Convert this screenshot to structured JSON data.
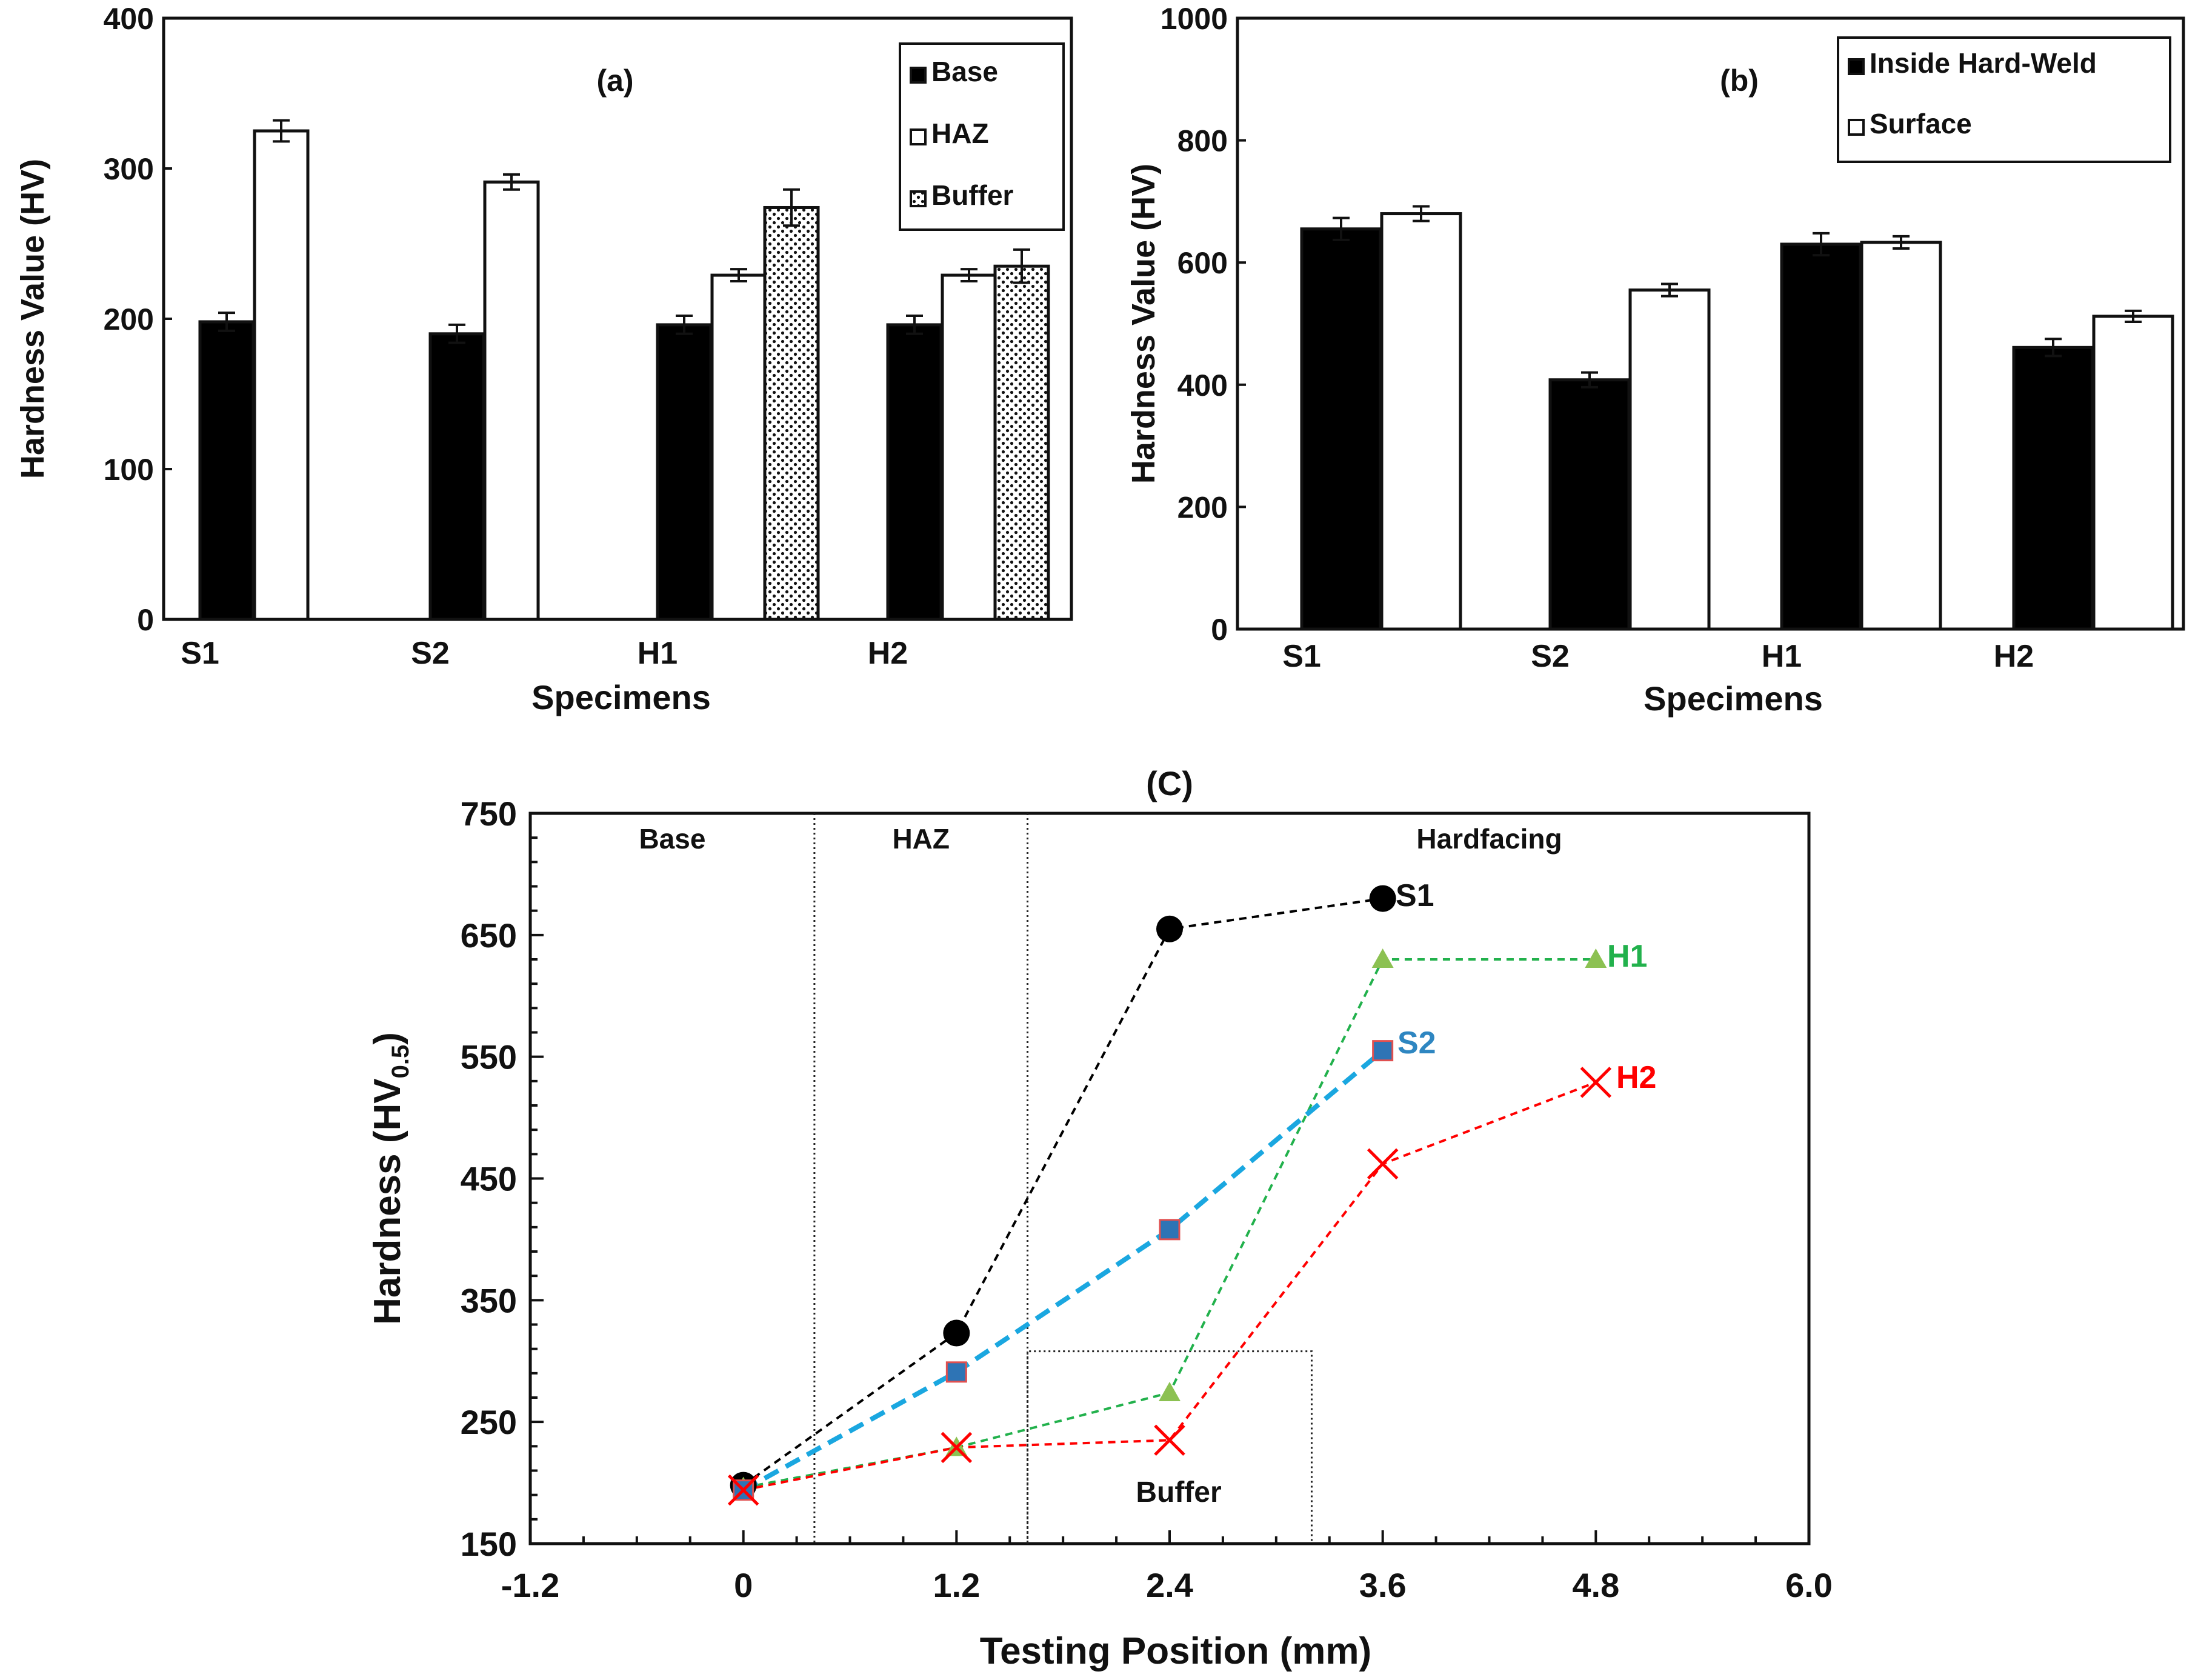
{
  "figure": {
    "colors": {
      "axis": "#111111",
      "s1": "#000000",
      "h1_line": "#22b14c",
      "h1_marker": "#8cc152",
      "s2_line": "#1aa7e0",
      "s2_fill": "#2e74b5",
      "s2_edge": "#e05050",
      "s2_label": "#2e86c1",
      "h2": "#ff0000"
    }
  },
  "chart_data": [
    {
      "id": "a",
      "type": "bar",
      "panel_label": "(a)",
      "xlabel": "Specimens",
      "ylabel": "Hardness Value (HV)",
      "ylim": [
        0,
        400
      ],
      "yticks": [
        "0",
        "100",
        "200",
        "300",
        "400"
      ],
      "categories": [
        "S1",
        "S2",
        "H1",
        "H2"
      ],
      "legend_position": "top-right",
      "series": [
        {
          "name": "Base",
          "pattern": "solid",
          "values": [
            198,
            190,
            196,
            196
          ],
          "errors": [
            6,
            6,
            6,
            6
          ]
        },
        {
          "name": "HAZ",
          "pattern": "open",
          "values": [
            325,
            291,
            229,
            229
          ],
          "errors": [
            7,
            5,
            4,
            4
          ]
        },
        {
          "name": "Buffer",
          "pattern": "dotted",
          "values": [
            null,
            null,
            274,
            235
          ],
          "errors": [
            null,
            null,
            12,
            11
          ]
        }
      ]
    },
    {
      "id": "b",
      "type": "bar",
      "panel_label": "(b)",
      "xlabel": "Specimens",
      "ylabel": "Hardness Value (HV)",
      "ylim": [
        0,
        1000
      ],
      "yticks": [
        "0",
        "200",
        "400",
        "600",
        "800",
        "1000"
      ],
      "categories": [
        "S1",
        "S2",
        "H1",
        "H2"
      ],
      "legend_position": "top-right",
      "series": [
        {
          "name": "Inside Hard-Weld",
          "pattern": "solid",
          "values": [
            655,
            408,
            630,
            461
          ],
          "errors": [
            18,
            12,
            18,
            14
          ]
        },
        {
          "name": "Surface",
          "pattern": "open",
          "values": [
            680,
            555,
            633,
            512
          ],
          "errors": [
            12,
            10,
            10,
            9
          ]
        }
      ]
    },
    {
      "id": "c",
      "type": "line",
      "panel_label": "(C)",
      "xlabel": "Testing Position (mm)",
      "ylabel_main": "Hardness (HV",
      "ylabel_sub": "0.5",
      "ylabel_end": ")",
      "xlim": [
        -1.2,
        6.0
      ],
      "ylim": [
        150,
        750
      ],
      "xticks": [
        "-1.2",
        "0",
        "1.2",
        "2.4",
        "3.6",
        "4.8",
        "6.0"
      ],
      "yticks": [
        "150",
        "250",
        "350",
        "450",
        "550",
        "650",
        "750"
      ],
      "regions": [
        {
          "label": "Base",
          "x_center": -0.4
        },
        {
          "label": "HAZ",
          "x_center": 1.0
        },
        {
          "label": "Hardfacing",
          "x_center": 4.2
        }
      ],
      "region_dividers": [
        0.4,
        1.6
      ],
      "buffer_box": {
        "label": "Buffer",
        "x_range": [
          1.6,
          3.2
        ],
        "y_range": [
          150,
          308
        ]
      },
      "series": [
        {
          "name": "S1",
          "marker": "circle",
          "x": [
            0,
            1.2,
            2.4,
            3.6
          ],
          "y": [
            198,
            323,
            655,
            680
          ]
        },
        {
          "name": "H1",
          "marker": "triangle",
          "x": [
            0,
            1.2,
            2.4,
            3.6,
            4.8
          ],
          "y": [
            196,
            229,
            274,
            630,
            630
          ]
        },
        {
          "name": "S2",
          "marker": "square",
          "x": [
            0,
            1.2,
            2.4,
            3.6
          ],
          "y": [
            194,
            291,
            408,
            555
          ]
        },
        {
          "name": "H2",
          "marker": "x",
          "x": [
            0,
            1.2,
            2.4,
            3.6,
            4.8
          ],
          "y": [
            194,
            229,
            235,
            462,
            529
          ]
        }
      ]
    }
  ]
}
